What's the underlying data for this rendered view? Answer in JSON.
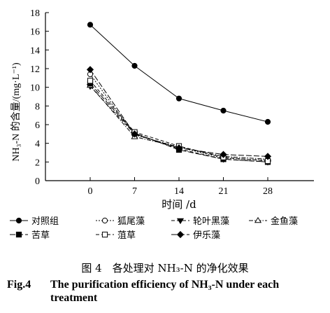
{
  "chart_data": {
    "type": "line",
    "x": [
      0,
      7,
      14,
      21,
      28
    ],
    "xticks": [
      "0",
      "7",
      "14",
      "21",
      "28"
    ],
    "xlabel": "时间 /d",
    "ylabel": "NH₃-N 的含量/(mg·L⁻¹)",
    "ylim": [
      0,
      18
    ],
    "yticks": [
      "0",
      "2",
      "4",
      "6",
      "8",
      "10",
      "12",
      "14",
      "16",
      "18"
    ],
    "grid": false,
    "legend_position": "bottom",
    "series": [
      {
        "name": "对照组",
        "marker": "filled-circle",
        "dash": "solid",
        "values": [
          16.7,
          12.3,
          8.8,
          7.5,
          6.3
        ]
      },
      {
        "name": "狐尾藻",
        "marker": "open-circle",
        "dash": "dotted",
        "values": [
          11.4,
          4.9,
          3.6,
          2.4,
          2.2
        ]
      },
      {
        "name": "轮叶黑藻",
        "marker": "filled-down-triangle",
        "dash": "dashed",
        "values": [
          10.1,
          5.0,
          3.4,
          2.3,
          2.0
        ]
      },
      {
        "name": "金鱼藻",
        "marker": "open-up-triangle",
        "dash": "dashdot",
        "values": [
          10.2,
          4.7,
          3.6,
          2.6,
          2.3
        ]
      },
      {
        "name": "苦草",
        "marker": "filled-square",
        "dash": "longdash",
        "values": [
          10.4,
          5.1,
          3.3,
          2.3,
          2.0
        ]
      },
      {
        "name": "菹草",
        "marker": "open-square",
        "dash": "dashed",
        "values": [
          10.7,
          5.2,
          3.7,
          2.5,
          2.1
        ]
      },
      {
        "name": "伊乐藻",
        "marker": "filled-diamond",
        "dash": "longdash",
        "values": [
          11.9,
          5.0,
          3.5,
          2.8,
          2.6
        ]
      }
    ]
  },
  "caption": {
    "cn": "图 4　各处理对 NH₃-N 的净化效果",
    "en_label": "Fig.4",
    "en_text": "The purification efficiency of NH₃-N under each treatment"
  }
}
